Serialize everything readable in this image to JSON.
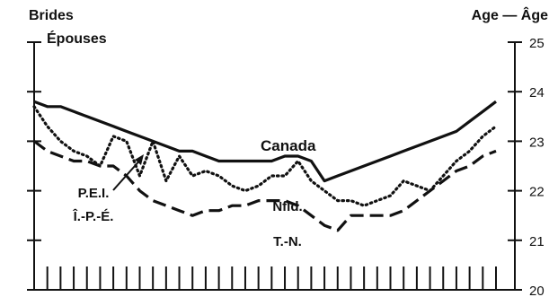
{
  "chart_data": {
    "type": "line",
    "title": "",
    "left_label_line1": "Brides",
    "left_label_line2": "Épouses",
    "right_label": "Age — Âge",
    "ylim": [
      20,
      25
    ],
    "yticks": [
      "20",
      "21",
      "22",
      "23",
      "24",
      "25"
    ],
    "x_count": 36,
    "grid": false,
    "series": [
      {
        "name": "Canada",
        "style": "solid",
        "values": [
          23.8,
          23.7,
          23.7,
          23.6,
          23.5,
          23.4,
          23.3,
          23.2,
          23.1,
          23.0,
          22.9,
          22.8,
          22.8,
          22.7,
          22.6,
          22.6,
          22.6,
          22.6,
          22.6,
          22.7,
          22.7,
          22.6,
          22.2,
          22.3,
          22.4,
          22.5,
          22.6,
          22.7,
          22.8,
          22.9,
          23.0,
          23.1,
          23.2,
          23.4,
          23.6,
          23.8
        ]
      },
      {
        "name": "P.E.I.",
        "name_fr": "Î.-P.-É.",
        "style": "dotted",
        "values": [
          23.7,
          23.3,
          23.0,
          22.8,
          22.7,
          22.5,
          23.1,
          23.0,
          22.3,
          23.0,
          22.2,
          22.7,
          22.3,
          22.4,
          22.3,
          22.1,
          22.0,
          22.1,
          22.3,
          22.3,
          22.6,
          22.2,
          22.0,
          21.8,
          21.8,
          21.7,
          21.8,
          21.9,
          22.2,
          22.1,
          22.0,
          22.3,
          22.6,
          22.8,
          23.1,
          23.3
        ]
      },
      {
        "name": "Nfld.",
        "name_fr": "T.-N.",
        "style": "dashed",
        "values": [
          23.0,
          22.8,
          22.7,
          22.6,
          22.6,
          22.5,
          22.5,
          22.3,
          22.0,
          21.8,
          21.7,
          21.6,
          21.5,
          21.6,
          21.6,
          21.7,
          21.7,
          21.8,
          21.8,
          21.8,
          21.7,
          21.5,
          21.3,
          21.2,
          21.5,
          21.5,
          21.5,
          21.5,
          21.6,
          21.8,
          22.0,
          22.2,
          22.4,
          22.5,
          22.7,
          22.8
        ]
      }
    ]
  }
}
